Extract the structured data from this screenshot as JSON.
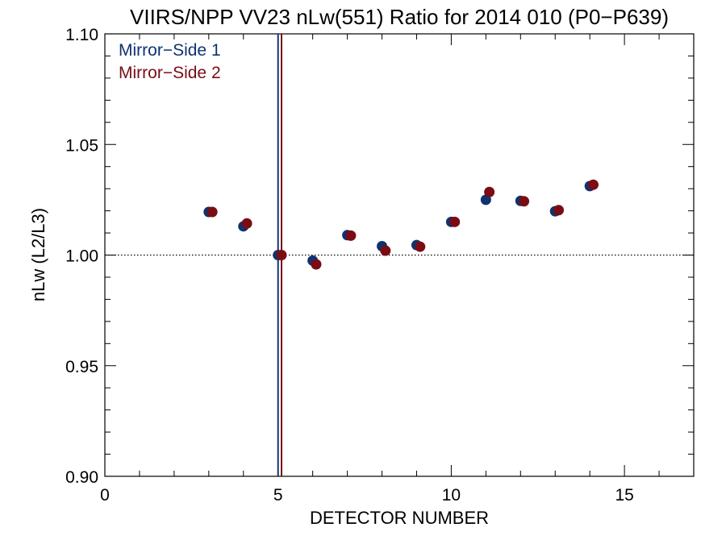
{
  "chart_data": {
    "type": "scatter",
    "title": "VIIRS/NPP VV23 nLw(551) Ratio for 2014 010 (P0−P639)",
    "xlabel": "DETECTOR NUMBER",
    "ylabel": "nLw (L2/L3)",
    "xlim": [
      0,
      17
    ],
    "ylim": [
      0.9,
      1.1
    ],
    "x_ticks": [
      0,
      5,
      10,
      15
    ],
    "x_tick_labels": [
      "0",
      "5",
      "10",
      "15"
    ],
    "y_ticks": [
      0.9,
      0.95,
      1.0,
      1.05,
      1.1
    ],
    "y_tick_labels": [
      "0.90",
      "0.95",
      "1.00",
      "1.05",
      "1.10"
    ],
    "reference_line_y": 1.0,
    "legend_position": "top-left",
    "series": [
      {
        "name": "Mirror−Side 1",
        "color": "#0e3370",
        "x_offset": 0,
        "x": [
          3,
          4,
          5,
          6,
          7,
          8,
          9,
          10,
          11,
          12,
          13,
          14
        ],
        "values": [
          1.0195,
          1.013,
          1.0,
          0.9975,
          1.009,
          1.004,
          1.0045,
          1.015,
          1.025,
          1.0245,
          1.0198,
          1.0312
        ],
        "vertical_line_x": 5
      },
      {
        "name": "Mirror−Side 2",
        "color": "#7a0c14",
        "x_offset": 0.1,
        "x": [
          3,
          4,
          5,
          6,
          7,
          8,
          9,
          10,
          11,
          12,
          13,
          14
        ],
        "values": [
          1.0195,
          1.0143,
          1.0,
          0.9958,
          1.0088,
          1.002,
          1.0038,
          1.015,
          1.0285,
          1.0243,
          1.0203,
          1.0318
        ],
        "vertical_line_x": 5.1
      }
    ]
  }
}
